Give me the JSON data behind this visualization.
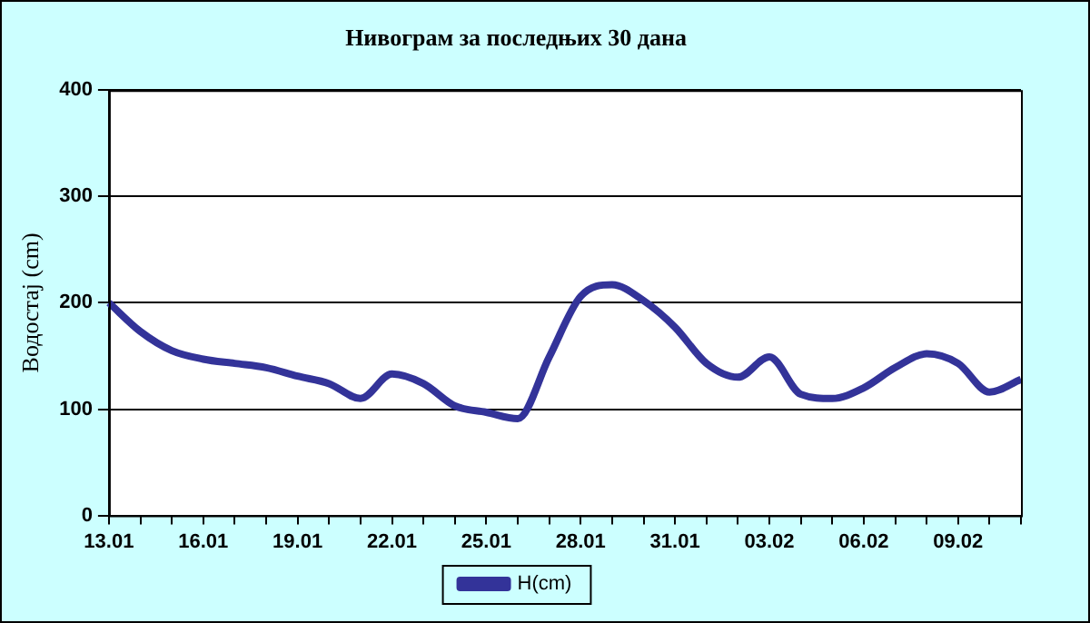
{
  "chart_data": {
    "type": "line",
    "title": "Нивограм за последњих 30 дана",
    "ylabel": "Водостај (cm)",
    "categories": [
      "13.01",
      null,
      null,
      "16.01",
      null,
      null,
      "19.01",
      null,
      null,
      "22.01",
      null,
      null,
      "25.01",
      null,
      null,
      "28.01",
      null,
      null,
      "31.01",
      null,
      null,
      "03.02",
      null,
      null,
      "06.02",
      null,
      null,
      "09.02",
      null,
      null
    ],
    "series": [
      {
        "name": "H(cm)",
        "color": "#333399",
        "values": [
          200,
          173,
          155,
          147,
          143,
          139,
          131,
          124,
          110,
          133,
          124,
          103,
          97,
          91,
          149,
          206,
          217,
          202,
          177,
          143,
          130,
          149,
          114,
          110,
          120,
          139,
          152,
          143,
          116,
          128
        ]
      }
    ],
    "ylim": [
      0,
      400
    ],
    "yticks": [
      0,
      100,
      200,
      300,
      400
    ],
    "grid": "y",
    "legend": "bottom",
    "marker": "none",
    "line_style": "solid"
  }
}
